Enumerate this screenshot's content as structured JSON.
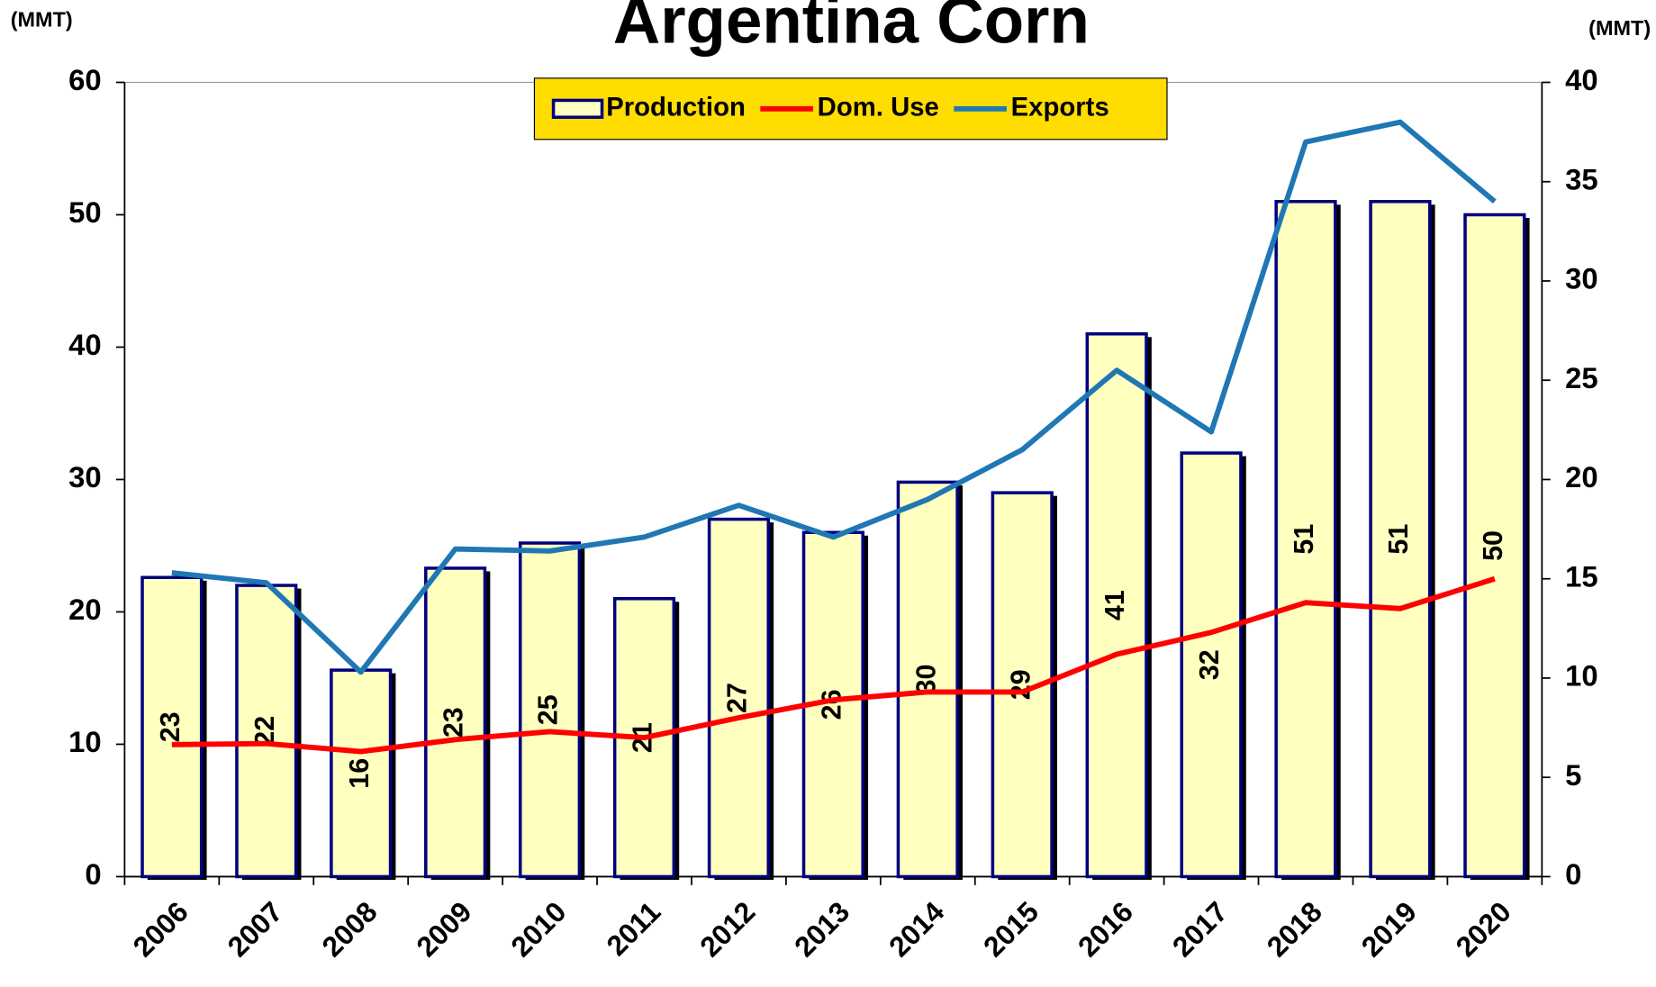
{
  "chart_data": {
    "type": "bar",
    "title": "Argentina Corn",
    "ylabel": "(MMT)",
    "y2label": "(MMT)",
    "categories": [
      "2006",
      "2007",
      "2008",
      "2009",
      "2010",
      "2011",
      "2012",
      "2013",
      "2014",
      "2015",
      "2016",
      "2017",
      "2018",
      "2019",
      "2020"
    ],
    "series": [
      {
        "name": "Production",
        "type": "bar",
        "color": "#ffffc0",
        "values": [
          22.6,
          22,
          15.6,
          23.3,
          25.2,
          21,
          27,
          26,
          29.8,
          29,
          41,
          32,
          51,
          51,
          50
        ],
        "value_labels": [
          "23",
          "22",
          "16",
          "23",
          "25",
          "21",
          "27",
          "26",
          "30",
          "29",
          "41",
          "32",
          "51",
          "51",
          "50"
        ]
      },
      {
        "name": "Dom. Use",
        "type": "line",
        "color": "#ff0000",
        "axis": "y2",
        "values": [
          6.65,
          6.7,
          6.3,
          6.9,
          7.3,
          7.0,
          8.0,
          8.9,
          9.3,
          9.3,
          11.2,
          12.3,
          13.8,
          13.5,
          15.0
        ]
      },
      {
        "name": "Exports",
        "type": "line",
        "color": "#1f77b4",
        "axis": "y2",
        "values": [
          15.3,
          14.8,
          10.3,
          16.5,
          16.4,
          17.1,
          18.7,
          17.1,
          19.0,
          21.5,
          25.5,
          22.4,
          37.0,
          38.0,
          34.0
        ]
      }
    ],
    "ylim": [
      0,
      60
    ],
    "yticks": [
      0,
      10,
      20,
      30,
      40,
      50,
      60
    ],
    "y2lim": [
      0,
      40
    ],
    "y2ticks": [
      0,
      5,
      10,
      15,
      20,
      25,
      30,
      35,
      40
    ]
  }
}
